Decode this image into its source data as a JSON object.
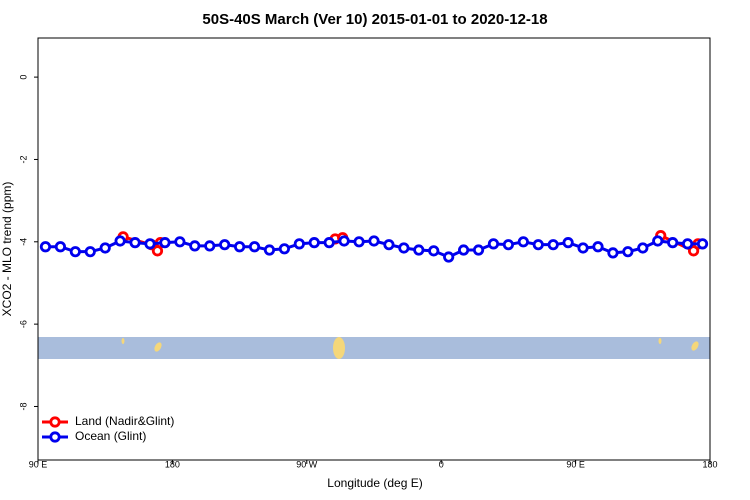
{
  "chart_data": {
    "type": "line",
    "title": "50S-40S March (Ver 10)   2015-01-01 to 2020-12-18",
    "x_label": "Longitude (deg E)",
    "y_label": "XCO2 - MLO trend (ppm)",
    "xlim": [
      90,
      540
    ],
    "ylim": [
      -9.3,
      0.95
    ],
    "xticks": [
      {
        "value": 90,
        "label": "90 E"
      },
      180,
      {
        "value": 270,
        "label": "90 W"
      },
      {
        "value": 360,
        "label": "0"
      },
      {
        "value": 450,
        "label": "90 E"
      },
      {
        "value": 540,
        "label": "180"
      }
    ],
    "yticks": [
      0,
      -2,
      -4,
      -6,
      -8
    ],
    "legend": "bottom-left",
    "series": [
      {
        "name": "Land (Nadir&Glint)",
        "color": "#ff0000",
        "x": [
          147,
          166,
          170,
          172,
          null,
          289,
          294,
          null,
          507,
          529,
          532
        ],
        "values": [
          -3.88,
          -4.07,
          -4.22,
          -4.02,
          null,
          -3.93,
          -3.9,
          null,
          -3.85,
          -4.22,
          -4.05
        ]
      },
      {
        "name": "Ocean (Glint)",
        "color": "#0000ee",
        "x": [
          95,
          105,
          115,
          125,
          135,
          145,
          155,
          165,
          175,
          185,
          195,
          205,
          215,
          225,
          235,
          245,
          255,
          265,
          275,
          285,
          295,
          305,
          315,
          325,
          335,
          345,
          355,
          365,
          375,
          385,
          395,
          405,
          415,
          425,
          435,
          445,
          455,
          465,
          475,
          485,
          495,
          505,
          515,
          525,
          535
        ],
        "values": [
          -4.12,
          -4.12,
          -4.24,
          -4.24,
          -4.15,
          -3.98,
          -4.02,
          -4.05,
          -4.02,
          -4.0,
          -4.1,
          -4.1,
          -4.07,
          -4.12,
          -4.12,
          -4.2,
          -4.17,
          -4.05,
          -4.02,
          -4.02,
          -3.98,
          -4.0,
          -3.98,
          -4.07,
          -4.15,
          -4.2,
          -4.22,
          -4.37,
          -4.2,
          -4.2,
          -4.05,
          -4.07,
          -4.0,
          -4.07,
          -4.07,
          -4.02,
          -4.15,
          -4.12,
          -4.27,
          -4.24,
          -4.15,
          -3.98,
          -4.02,
          -4.05,
          -4.05
        ]
      }
    ]
  }
}
